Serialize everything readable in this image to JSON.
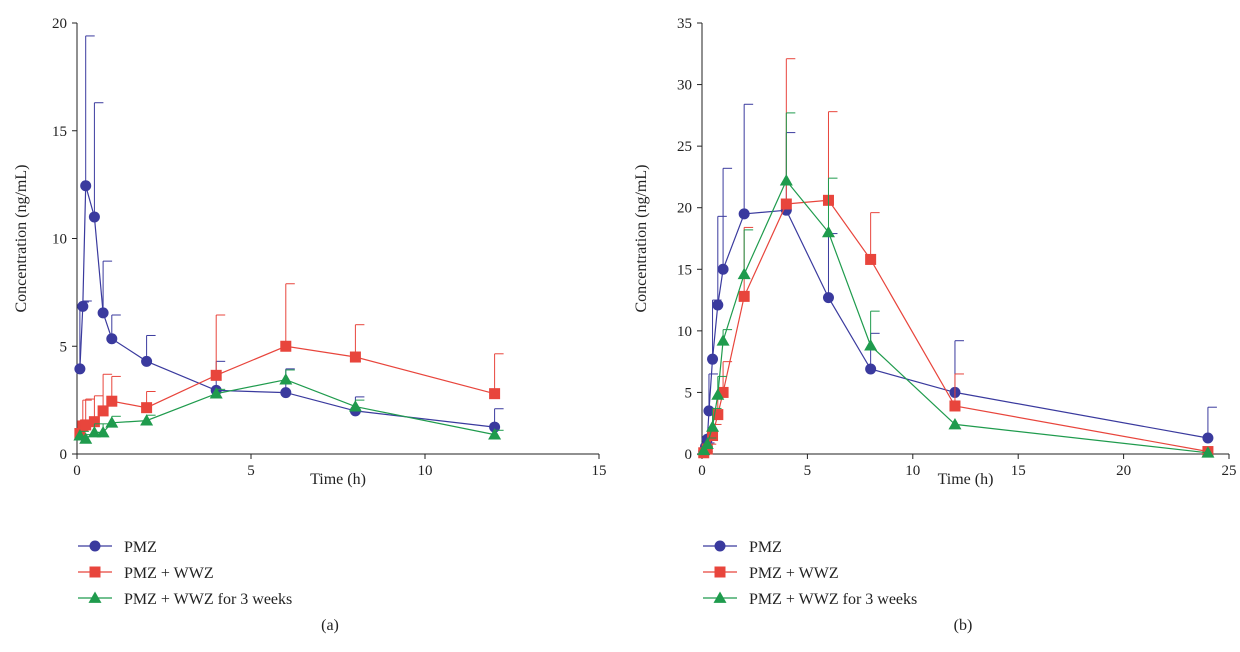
{
  "chart_data": [
    {
      "type": "line",
      "panel_label": "(a)",
      "xlabel": "Time (h)",
      "ylabel": "Concentration (ng/mL)",
      "xlim": [
        0,
        15
      ],
      "ylim": [
        0,
        20
      ],
      "xticks": [
        0,
        5,
        10,
        15
      ],
      "yticks": [
        0,
        5,
        10,
        15,
        20
      ],
      "grid": false,
      "legend_position": "bottom-left",
      "series": [
        {
          "name": "PMZ",
          "color": "#3a3a9e",
          "marker": "circle",
          "points": [
            {
              "x": 0.083,
              "y": 3.95,
              "err": 3.1
            },
            {
              "x": 0.167,
              "y": 6.85,
              "err": 0.25
            },
            {
              "x": 0.25,
              "y": 12.45,
              "err": 6.95
            },
            {
              "x": 0.5,
              "y": 11.0,
              "err": 5.3
            },
            {
              "x": 0.75,
              "y": 6.55,
              "err": 2.4
            },
            {
              "x": 1,
              "y": 5.35,
              "err": 1.1
            },
            {
              "x": 2,
              "y": 4.3,
              "err": 1.2
            },
            {
              "x": 4,
              "y": 2.95,
              "err": 1.35
            },
            {
              "x": 6,
              "y": 2.85,
              "err": 1.1
            },
            {
              "x": 8,
              "y": 2.0,
              "err": 0.65
            },
            {
              "x": 12,
              "y": 1.25,
              "err": 0.85
            }
          ]
        },
        {
          "name": "PMZ + WWZ",
          "color": "#e8453c",
          "marker": "square",
          "points": [
            {
              "x": 0.083,
              "y": 0.95,
              "err": 0.6
            },
            {
              "x": 0.167,
              "y": 1.3,
              "err": 1.2
            },
            {
              "x": 0.25,
              "y": 1.35,
              "err": 1.2
            },
            {
              "x": 0.5,
              "y": 1.5,
              "err": 1.2
            },
            {
              "x": 0.75,
              "y": 2.0,
              "err": 1.7
            },
            {
              "x": 1,
              "y": 2.45,
              "err": 1.15
            },
            {
              "x": 2,
              "y": 2.15,
              "err": 0.75
            },
            {
              "x": 4,
              "y": 3.65,
              "err": 2.8
            },
            {
              "x": 6,
              "y": 5.0,
              "err": 2.9
            },
            {
              "x": 8,
              "y": 4.5,
              "err": 1.5
            },
            {
              "x": 12,
              "y": 2.8,
              "err": 1.85
            }
          ]
        },
        {
          "name": "PMZ + WWZ for 3 weeks",
          "color": "#1f9b4d",
          "marker": "triangle",
          "points": [
            {
              "x": 0.083,
              "y": 0.85,
              "err": 0.2
            },
            {
              "x": 0.25,
              "y": 0.7,
              "err": 0.2
            },
            {
              "x": 0.5,
              "y": 1.0,
              "err": 0.4
            },
            {
              "x": 0.75,
              "y": 1.0,
              "err": 0.4
            },
            {
              "x": 1,
              "y": 1.45,
              "err": 0.3
            },
            {
              "x": 2,
              "y": 1.55,
              "err": 0.25
            },
            {
              "x": 4,
              "y": 2.8,
              "err": 0.2
            },
            {
              "x": 6,
              "y": 3.45,
              "err": 0.45
            },
            {
              "x": 8,
              "y": 2.2,
              "err": 0.3
            },
            {
              "x": 12,
              "y": 0.9,
              "err": 0.2
            }
          ]
        }
      ]
    },
    {
      "type": "line",
      "panel_label": "(b)",
      "xlabel": "Time (h)",
      "ylabel": "Concentration (ng/mL)",
      "xlim": [
        0,
        25
      ],
      "ylim": [
        0,
        35
      ],
      "xticks": [
        0,
        5,
        10,
        15,
        20,
        25
      ],
      "yticks": [
        0,
        5,
        10,
        15,
        20,
        25,
        30,
        35
      ],
      "grid": false,
      "legend_position": "bottom-left",
      "series": [
        {
          "name": "PMZ",
          "color": "#3a3a9e",
          "marker": "circle",
          "points": [
            {
              "x": 0.083,
              "y": 0.2,
              "err": 0.2
            },
            {
              "x": 0.167,
              "y": 0.6,
              "err": 0.3
            },
            {
              "x": 0.25,
              "y": 1.2,
              "err": 0.5
            },
            {
              "x": 0.33,
              "y": 3.5,
              "err": 3.0
            },
            {
              "x": 0.5,
              "y": 7.7,
              "err": 4.8
            },
            {
              "x": 0.75,
              "y": 12.1,
              "err": 7.2
            },
            {
              "x": 1,
              "y": 15.0,
              "err": 8.2
            },
            {
              "x": 2,
              "y": 19.5,
              "err": 8.9
            },
            {
              "x": 4,
              "y": 19.8,
              "err": 6.3
            },
            {
              "x": 6,
              "y": 12.7,
              "err": 5.2
            },
            {
              "x": 8,
              "y": 6.9,
              "err": 2.9
            },
            {
              "x": 12,
              "y": 5.0,
              "err": 4.2
            },
            {
              "x": 24,
              "y": 1.3,
              "err": 2.5
            }
          ]
        },
        {
          "name": "PMZ + WWZ",
          "color": "#e8453c",
          "marker": "square",
          "points": [
            {
              "x": 0.083,
              "y": 0.1,
              "err": 0.1
            },
            {
              "x": 0.25,
              "y": 0.4,
              "err": 0.4
            },
            {
              "x": 0.5,
              "y": 1.5,
              "err": 0.9
            },
            {
              "x": 0.75,
              "y": 3.2,
              "err": 2.1
            },
            {
              "x": 1,
              "y": 5.0,
              "err": 2.5
            },
            {
              "x": 2,
              "y": 12.8,
              "err": 5.6
            },
            {
              "x": 4,
              "y": 20.3,
              "err": 11.8
            },
            {
              "x": 6,
              "y": 20.6,
              "err": 7.2
            },
            {
              "x": 8,
              "y": 15.8,
              "err": 3.8
            },
            {
              "x": 12,
              "y": 3.9,
              "err": 2.6
            },
            {
              "x": 24,
              "y": 0.2,
              "err": 0
            }
          ]
        },
        {
          "name": "PMZ + WWZ for 3 weeks",
          "color": "#1f9b4d",
          "marker": "triangle",
          "points": [
            {
              "x": 0.083,
              "y": 0.3,
              "err": 0.3
            },
            {
              "x": 0.25,
              "y": 0.8,
              "err": 0.5
            },
            {
              "x": 0.5,
              "y": 2.2,
              "err": 1.5
            },
            {
              "x": 0.75,
              "y": 4.8,
              "err": 1.5
            },
            {
              "x": 1,
              "y": 9.2,
              "err": 0.9
            },
            {
              "x": 2,
              "y": 14.6,
              "err": 3.6
            },
            {
              "x": 4,
              "y": 22.2,
              "err": 5.5
            },
            {
              "x": 6,
              "y": 18.0,
              "err": 4.4
            },
            {
              "x": 8,
              "y": 8.8,
              "err": 2.8
            },
            {
              "x": 12,
              "y": 2.4,
              "err": 0
            },
            {
              "x": 24,
              "y": 0.1,
              "err": 0
            }
          ]
        }
      ]
    }
  ]
}
